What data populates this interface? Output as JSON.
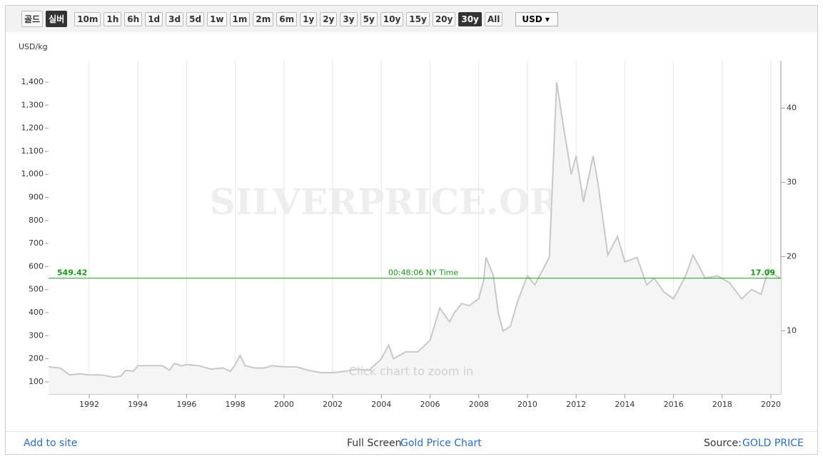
{
  "toolbar": {
    "buttons": [
      "골드",
      "실버",
      "10m",
      "1h",
      "6h",
      "1d",
      "3d",
      "5d",
      "1w",
      "1m",
      "2m",
      "6m",
      "1y",
      "2y",
      "3y",
      "5y",
      "10y",
      "15y",
      "20y",
      "30y",
      "All"
    ],
    "active": [
      "실버",
      "30y"
    ],
    "currency": "USD"
  },
  "chart_data": {
    "type": "line",
    "y_label": "USD/kg",
    "watermark": "SILVERPRICE.ORG",
    "hint": "Click chart to zoom in",
    "x": [
      1990.33,
      1990.8,
      1991.2,
      1991.6,
      1992,
      1992.5,
      1993,
      1993.3,
      1993.5,
      1993.8,
      1994,
      1994.5,
      1995,
      1995.3,
      1995.5,
      1995.8,
      1996,
      1996.5,
      1997,
      1997.5,
      1997.8,
      1998,
      1998.2,
      1998.4,
      1998.8,
      1999.2,
      1999.5,
      2000,
      2000.5,
      2001,
      2001.5,
      2002,
      2002.5,
      2003,
      2003.5,
      2004,
      2004.3,
      2004.5,
      2005,
      2005.5,
      2006,
      2006.4,
      2006.8,
      2007,
      2007.3,
      2007.6,
      2008,
      2008.2,
      2008.3,
      2008.6,
      2008.8,
      2009,
      2009.3,
      2009.6,
      2010,
      2010.3,
      2010.6,
      2010.9,
      2011.2,
      2011.4,
      2011.8,
      2012,
      2012.3,
      2012.7,
      2012.9,
      2013.3,
      2013.7,
      2014,
      2014.5,
      2014.9,
      2015.2,
      2015.6,
      2016,
      2016.5,
      2016.8,
      2017.3,
      2017.8,
      2018.3,
      2018.8,
      2019.2,
      2019.6,
      2019.9,
      2020.2,
      2020.41
    ],
    "series": [
      {
        "name": "Silver",
        "color": "#c8c8c8",
        "values": [
          165,
          160,
          130,
          135,
          130,
          130,
          120,
          125,
          150,
          145,
          170,
          170,
          170,
          150,
          180,
          170,
          175,
          170,
          155,
          160,
          145,
          175,
          215,
          170,
          160,
          160,
          170,
          165,
          165,
          150,
          140,
          140,
          145,
          155,
          150,
          200,
          260,
          200,
          230,
          230,
          280,
          420,
          360,
          400,
          440,
          430,
          460,
          540,
          640,
          560,
          400,
          320,
          340,
          450,
          560,
          520,
          580,
          640,
          1400,
          1260,
          1000,
          1080,
          880,
          1080,
          960,
          650,
          730,
          620,
          640,
          520,
          550,
          490,
          460,
          560,
          650,
          550,
          560,
          530,
          460,
          500,
          480,
          590,
          560,
          549.42
        ]
      }
    ],
    "xlim": [
      1990.33,
      2020.41
    ],
    "xticks": [
      1992,
      1994,
      1996,
      1998,
      2000,
      2002,
      2004,
      2006,
      2008,
      2010,
      2012,
      2014,
      2016,
      2018,
      2020
    ],
    "ylim": [
      47,
      1493
    ],
    "yticks": [
      100,
      200,
      300,
      400,
      500,
      600,
      700,
      800,
      900,
      {
        "value": 1000,
        "label": "1,000"
      },
      {
        "value": 1100,
        "label": "1,100"
      },
      {
        "value": 1200,
        "label": "1,200"
      },
      {
        "value": 1300,
        "label": "1,300"
      },
      {
        "value": 1400,
        "label": "1,400"
      }
    ],
    "y2lim": [
      1.47,
      46.4
    ],
    "y2ticks": [
      10,
      20,
      30,
      40
    ],
    "grid": "x",
    "current": {
      "value": 549.42,
      "value2": 17.09,
      "time": "00:48:06 NY Time",
      "color": "#1a9a1a"
    }
  },
  "footer": {
    "add": "Add to site",
    "fullscreen": "Full Screen",
    "chart_link": "Gold Price Chart",
    "source": "Source:",
    "source_link": "GOLD PRICE"
  }
}
